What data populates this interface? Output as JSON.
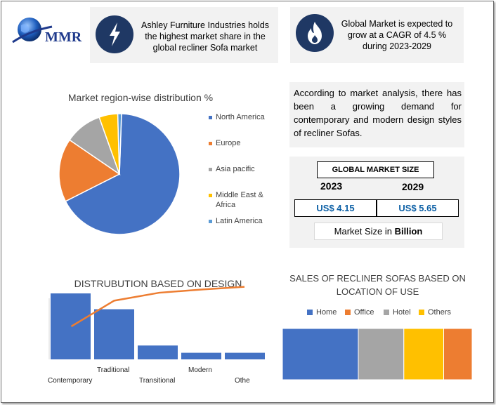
{
  "logo": {
    "text": "MMR"
  },
  "cards": {
    "share": "Ashley Furniture Industries holds the highest market share in the global recliner Sofa market",
    "cagr": "Global Market is expected to grow at a CAGR of 4.5 % during 2023-2029"
  },
  "analysis_text": "According to market analysis, there has been a growing demand for contemporary and modern design styles of recliner Sofas.",
  "market_size": {
    "header": "GLOBAL MARKET SIZE",
    "year1": "2023",
    "year2": "2029",
    "value1": "US$ 4.15",
    "value2": "US$ 5.65",
    "unit_prefix": "Market Size in ",
    "unit_bold": "Billion"
  },
  "colors": {
    "blue": "#4472c4",
    "orange": "#ed7d31",
    "gray": "#a5a5a5",
    "yellow": "#ffc000",
    "lightblue": "#5b9bd5",
    "navy": "#1f3864"
  },
  "chart_data": [
    {
      "type": "pie",
      "title": "Market region-wise distribution %",
      "categories": [
        "North America",
        "Europe",
        "Asia pacific",
        "Middle East & Africa",
        "Latin America"
      ],
      "values": [
        67,
        17,
        10,
        5,
        1
      ],
      "colors": [
        "#4472c4",
        "#ed7d31",
        "#a5a5a5",
        "#ffc000",
        "#5b9bd5"
      ],
      "legend": "right"
    },
    {
      "type": "bar",
      "title": "DISTRUBUTION BASED ON DESIGN",
      "categories": [
        "Contemporary",
        "Traditional",
        "Transitional",
        "Modern",
        "Othe"
      ],
      "values": [
        100,
        76,
        21,
        10,
        10
      ],
      "line_values": [
        50,
        89,
        101,
        106,
        110
      ],
      "colors": {
        "bar": "#4472c4",
        "line": "#ed7d31"
      },
      "ylim": [
        0,
        120
      ],
      "grid": false
    },
    {
      "type": "bar",
      "subtype": "stacked-horizontal-100",
      "title": "SALES OF RECLINER SOFAS BASED ON LOCATION OF USE",
      "series": [
        {
          "name": "Home",
          "value": 40
        },
        {
          "name": "Office",
          "value": 15
        },
        {
          "name": "Hotel",
          "value": 24
        },
        {
          "name": "Others",
          "value": 21
        }
      ],
      "display_order": [
        "Home",
        "Hotel",
        "Others",
        "Office"
      ],
      "colors": {
        "Home": "#4472c4",
        "Office": "#ed7d31",
        "Hotel": "#a5a5a5",
        "Others": "#ffc000"
      },
      "legend": "top"
    }
  ]
}
